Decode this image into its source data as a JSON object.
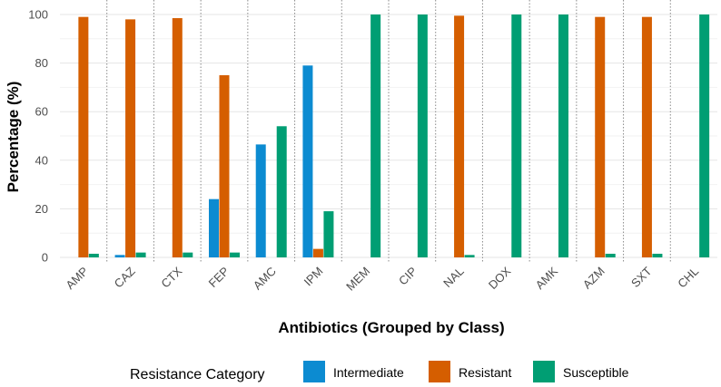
{
  "chart_data": {
    "type": "bar",
    "title": "",
    "xlabel": "Antibiotics (Grouped by Class)",
    "ylabel": "Percentage (%)",
    "ylim": [
      0,
      100
    ],
    "yticks": [
      0,
      20,
      40,
      60,
      80,
      100
    ],
    "grid": true,
    "categories": [
      "AMP",
      "CAZ",
      "CTX",
      "FEP",
      "AMC",
      "IPM",
      "MEM",
      "CIP",
      "NAL",
      "DOX",
      "AMK",
      "AZM",
      "SXT",
      "CHL"
    ],
    "series": [
      {
        "name": "Intermediate",
        "color": "#0C8BD1",
        "values": [
          0,
          1,
          0,
          24,
          46.5,
          79,
          0,
          0,
          0,
          0,
          0,
          0,
          0,
          0
        ]
      },
      {
        "name": "Resistant",
        "color": "#D55E00",
        "values": [
          99,
          98,
          98.5,
          75,
          0,
          3.5,
          0,
          0,
          99.5,
          0,
          0,
          99,
          99,
          0
        ]
      },
      {
        "name": "Susceptible",
        "color": "#009E73",
        "values": [
          1.5,
          2,
          2,
          2,
          54,
          19,
          100,
          100,
          1,
          100,
          100,
          1.5,
          1.5,
          100
        ]
      }
    ],
    "legend": {
      "title": "Resistance Category",
      "position": "bottom"
    }
  }
}
